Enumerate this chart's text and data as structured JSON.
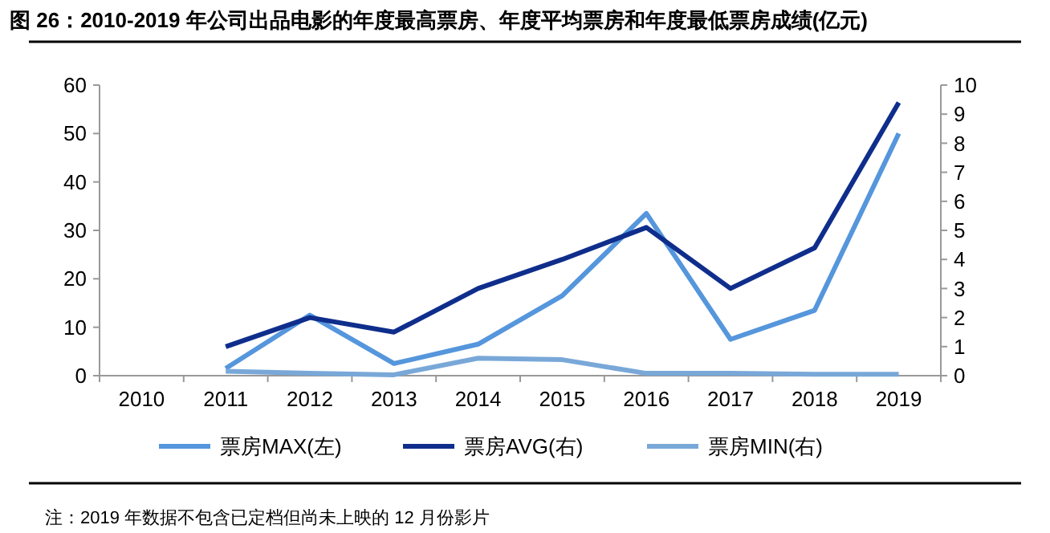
{
  "chart_data": {
    "type": "line",
    "title": "图 26：2010-2019 年公司出品电影的年度最高票房、年度平均票房和年度最低票房成绩(亿元)",
    "categories": [
      "2010",
      "2011",
      "2012",
      "2013",
      "2014",
      "2015",
      "2016",
      "2017",
      "2018",
      "2019"
    ],
    "series": [
      {
        "name": "票房MAX(左)",
        "color": "#5596dc",
        "values": [
          null,
          1.5,
          12.5,
          2.5,
          6.5,
          16.5,
          33.5,
          7.5,
          13.5,
          50
        ]
      },
      {
        "name": "票房AVG(右)",
        "color": "#0f2e8c",
        "axis": "y2",
        "values": [
          null,
          1.0,
          2.0,
          1.5,
          3.0,
          4.0,
          5.1,
          3.0,
          4.4,
          9.4
        ]
      },
      {
        "name": "票房MIN(右)",
        "color": "#79a8d8",
        "axis": "y2",
        "values": [
          null,
          0.15,
          0.08,
          0.03,
          0.6,
          0.55,
          0.08,
          0.08,
          0.05,
          0.05
        ]
      }
    ],
    "ylim": [
      0,
      60
    ],
    "yticks": [
      0,
      10,
      20,
      30,
      40,
      50,
      60
    ],
    "y2lim": [
      0,
      10
    ],
    "y2ticks": [
      0,
      1,
      2,
      3,
      4,
      5,
      6,
      7,
      8,
      9,
      10
    ],
    "grid": false,
    "legend": "bottom",
    "marker": "none",
    "line_style": "solid",
    "annotations": [
      "注：2019 年数据不包含已定档但尚未上映的 12 月份影片"
    ]
  }
}
